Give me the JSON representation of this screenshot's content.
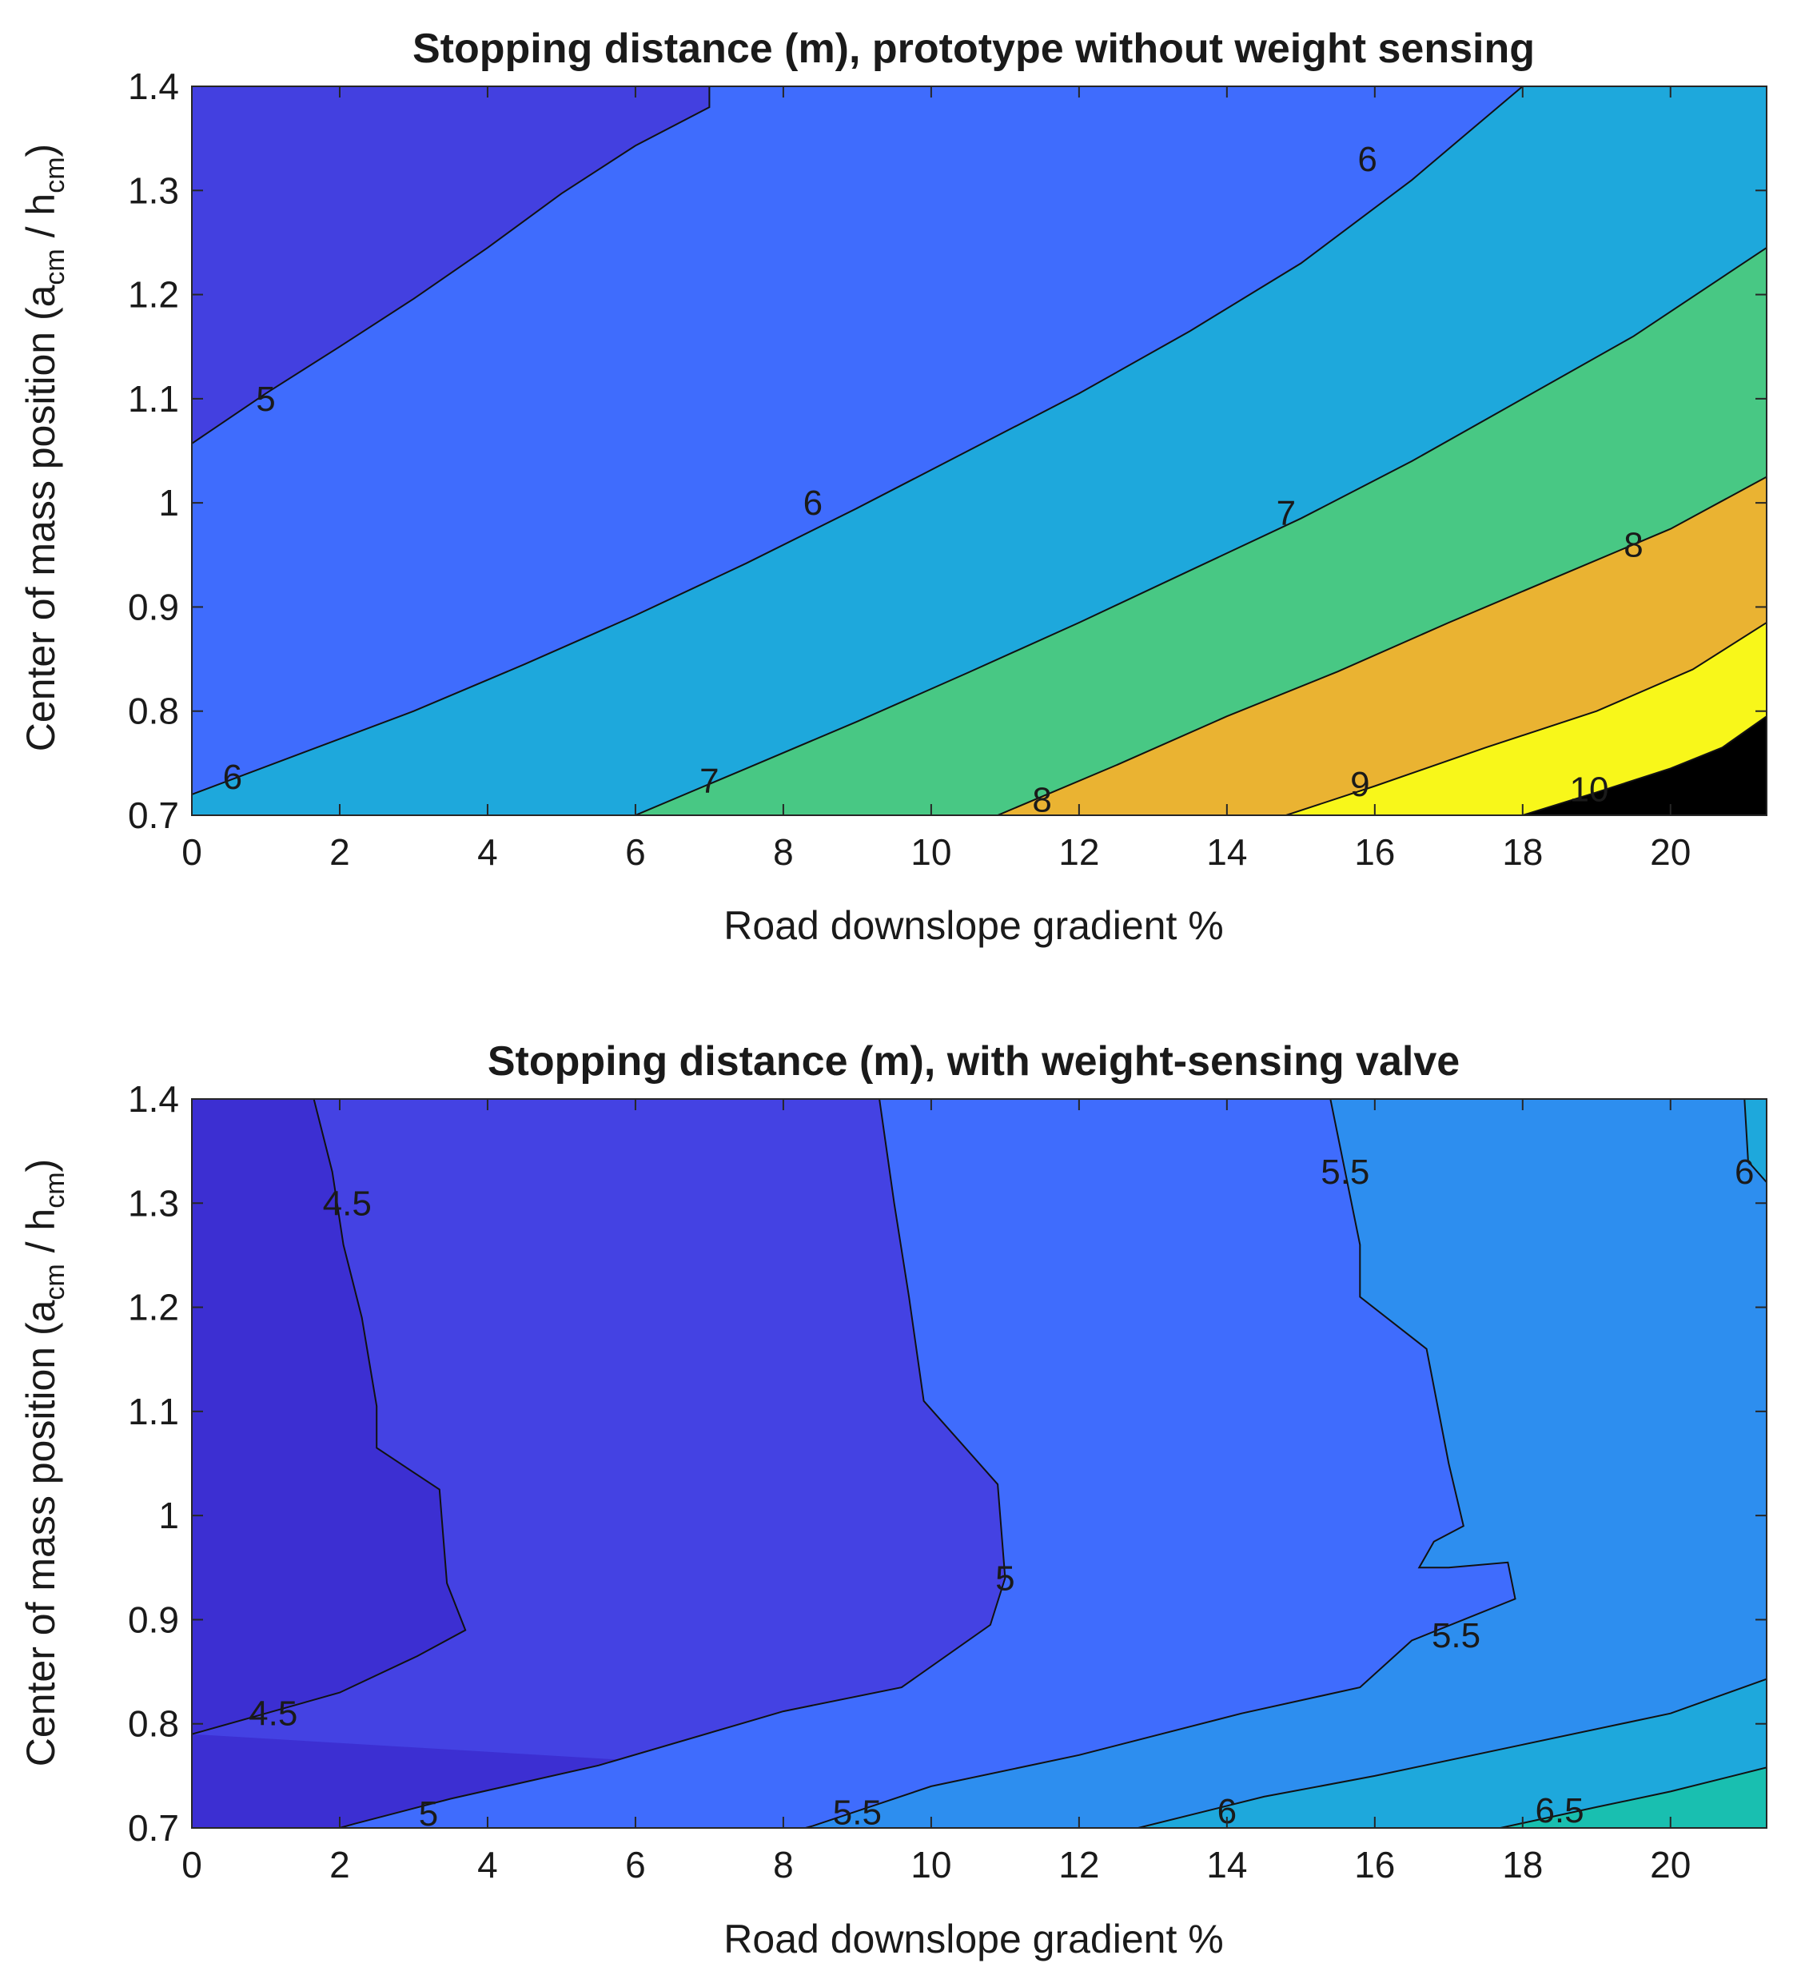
{
  "chart_data": [
    {
      "type": "contour",
      "title": "Stopping distance (m), prototype without weight sensing",
      "xlabel": "Road downslope gradient %",
      "ylabel": {
        "main": "Center of mass position (a",
        "sub1": "cm",
        "mid": " / h",
        "sub2": "cm",
        "end": ")"
      },
      "xlim": [
        0,
        21.3
      ],
      "ylim": [
        0.7,
        1.4
      ],
      "xticks": [
        "0",
        "2",
        "4",
        "6",
        "8",
        "10",
        "12",
        "14",
        "16",
        "18",
        "20"
      ],
      "yticks": [
        "0.7",
        "0.8",
        "0.9",
        "1",
        "1.1",
        "1.2",
        "1.3",
        "1.4"
      ],
      "levels": [
        5,
        6,
        7,
        8,
        9,
        10
      ],
      "level_colors": [
        "#4340e0",
        "#3f6cfd",
        "#1ea8dc",
        "#48c884",
        "#eab332",
        "#f8f71a"
      ],
      "contours": [
        {
          "level": 5,
          "label": "5",
          "points": [
            [
              0,
              1.057
            ],
            [
              1.0,
              1.105
            ],
            [
              2.0,
              1.15
            ],
            [
              3.0,
              1.196
            ],
            [
              4.0,
              1.245
            ],
            [
              5.0,
              1.297
            ],
            [
              6.0,
              1.343
            ],
            [
              7.0,
              1.38
            ],
            [
              7.0,
              1.4
            ]
          ]
        },
        {
          "level": 6,
          "label": "6",
          "points": [
            [
              0,
              0.72
            ],
            [
              1.5,
              0.76
            ],
            [
              3.0,
              0.8
            ],
            [
              4.5,
              0.845
            ],
            [
              6.0,
              0.892
            ],
            [
              7.5,
              0.942
            ],
            [
              9.0,
              0.995
            ],
            [
              10.5,
              1.05
            ],
            [
              12.0,
              1.105
            ],
            [
              13.5,
              1.165
            ],
            [
              15.0,
              1.23
            ],
            [
              16.5,
              1.31
            ],
            [
              17.2,
              1.352
            ],
            [
              18.0,
              1.4
            ]
          ]
        },
        {
          "level": 7,
          "label": "7",
          "points": [
            [
              6.0,
              0.7
            ],
            [
              7.5,
              0.745
            ],
            [
              9.0,
              0.79
            ],
            [
              10.5,
              0.837
            ],
            [
              12.0,
              0.885
            ],
            [
              13.5,
              0.935
            ],
            [
              15.0,
              0.985
            ],
            [
              16.5,
              1.04
            ],
            [
              18.0,
              1.1
            ],
            [
              19.5,
              1.16
            ],
            [
              21.3,
              1.245
            ]
          ]
        },
        {
          "level": 8,
          "label": "8",
          "points": [
            [
              10.9,
              0.7
            ],
            [
              12.5,
              0.748
            ],
            [
              14.0,
              0.795
            ],
            [
              15.5,
              0.838
            ],
            [
              17.0,
              0.885
            ],
            [
              18.5,
              0.93
            ],
            [
              20.0,
              0.975
            ],
            [
              21.3,
              1.025
            ]
          ]
        },
        {
          "level": 9,
          "label": "9",
          "points": [
            [
              14.8,
              0.7
            ],
            [
              16.0,
              0.728
            ],
            [
              17.5,
              0.765
            ],
            [
              19.0,
              0.8
            ],
            [
              20.3,
              0.84
            ],
            [
              21.3,
              0.885
            ]
          ]
        },
        {
          "level": 10,
          "label": "10",
          "points": [
            [
              18.0,
              0.7
            ],
            [
              19.0,
              0.722
            ],
            [
              20.0,
              0.745
            ],
            [
              20.7,
              0.765
            ],
            [
              21.3,
              0.795
            ]
          ]
        }
      ],
      "contour_labels": [
        {
          "label": "5",
          "x": 1.0,
          "y": 1.1
        },
        {
          "label": "6",
          "x": 15.9,
          "y": 1.33
        },
        {
          "label": "6",
          "x": 8.4,
          "y": 1.0
        },
        {
          "label": "6",
          "x": 0.55,
          "y": 0.737
        },
        {
          "label": "7",
          "x": 14.8,
          "y": 0.99
        },
        {
          "label": "7",
          "x": 7.0,
          "y": 0.733
        },
        {
          "label": "8",
          "x": 19.5,
          "y": 0.96
        },
        {
          "label": "8",
          "x": 11.5,
          "y": 0.715
        },
        {
          "label": "9",
          "x": 15.8,
          "y": 0.73
        },
        {
          "label": "10",
          "x": 18.9,
          "y": 0.725
        }
      ]
    },
    {
      "type": "contour",
      "title": "Stopping distance (m), with weight-sensing valve",
      "xlabel": "Road downslope gradient %",
      "ylabel": {
        "main": "Center of mass position (a",
        "sub1": "cm",
        "mid": " / h",
        "sub2": "cm",
        "end": ")"
      },
      "xlim": [
        0,
        21.3
      ],
      "ylim": [
        0.7,
        1.4
      ],
      "xticks": [
        "0",
        "2",
        "4",
        "6",
        "8",
        "10",
        "12",
        "14",
        "16",
        "18",
        "20"
      ],
      "yticks": [
        "0.7",
        "0.8",
        "0.9",
        "1",
        "1.1",
        "1.2",
        "1.3",
        "1.4"
      ],
      "levels": [
        4.5,
        5,
        5.5,
        6,
        6.5
      ],
      "level_colors": [
        "#3c2fd2",
        "#4442e3",
        "#3f6cfd",
        "#2d8eef",
        "#1ea8dc",
        "#19bfb0"
      ],
      "contours": [
        {
          "level": 4.5,
          "label": "4.5",
          "points": [
            [
              1.65,
              1.4
            ],
            [
              1.9,
              1.33
            ],
            [
              2.05,
              1.26
            ],
            [
              2.3,
              1.19
            ],
            [
              2.5,
              1.105
            ],
            [
              2.5,
              1.065
            ],
            [
              3.35,
              1.025
            ],
            [
              3.45,
              0.935
            ],
            [
              3.7,
              0.89
            ],
            [
              3.05,
              0.865
            ],
            [
              2.0,
              0.83
            ],
            [
              1.0,
              0.81
            ],
            [
              0,
              0.79
            ]
          ]
        },
        {
          "level": 5,
          "label": "5",
          "points": [
            [
              9.3,
              1.4
            ],
            [
              9.5,
              1.3
            ],
            [
              9.7,
              1.21
            ],
            [
              9.9,
              1.11
            ],
            [
              10.9,
              1.03
            ],
            [
              11.0,
              0.94
            ],
            [
              10.8,
              0.895
            ],
            [
              9.6,
              0.835
            ],
            [
              8.0,
              0.812
            ],
            [
              5.5,
              0.76
            ],
            [
              3.5,
              0.728
            ],
            [
              2.2,
              0.704
            ],
            [
              2.0,
              0.7
            ]
          ]
        },
        {
          "level": 5.5,
          "label": "5.5",
          "points": [
            [
              15.4,
              1.4
            ],
            [
              15.6,
              1.33
            ],
            [
              15.8,
              1.26
            ],
            [
              15.8,
              1.21
            ],
            [
              16.7,
              1.16
            ],
            [
              17.0,
              1.05
            ],
            [
              17.2,
              0.99
            ],
            [
              16.8,
              0.975
            ],
            [
              16.6,
              0.95
            ],
            [
              17.0,
              0.95
            ],
            [
              17.8,
              0.955
            ],
            [
              17.9,
              0.92
            ],
            [
              16.5,
              0.88
            ],
            [
              15.8,
              0.835
            ],
            [
              14.2,
              0.81
            ],
            [
              12.0,
              0.77
            ],
            [
              10.0,
              0.74
            ],
            [
              8.4,
              0.702
            ],
            [
              8.3,
              0.7
            ]
          ]
        },
        {
          "level": 6,
          "label": "6",
          "points": [
            [
              21.0,
              1.4
            ],
            [
              21.05,
              1.34
            ],
            [
              21.3,
              1.32
            ]
          ]
        },
        {
          "level": 6,
          "label": "6",
          "points": [
            [
              12.8,
              0.7
            ],
            [
              14.5,
              0.73
            ],
            [
              16.0,
              0.75
            ],
            [
              18.0,
              0.78
            ],
            [
              20.0,
              0.81
            ],
            [
              21.3,
              0.843
            ]
          ]
        },
        {
          "level": 6.5,
          "label": "6.5",
          "points": [
            [
              17.7,
              0.7
            ],
            [
              19.0,
              0.72
            ],
            [
              20.0,
              0.735
            ],
            [
              21.3,
              0.758
            ]
          ]
        }
      ],
      "contour_labels": [
        {
          "label": "4.5",
          "x": 2.1,
          "y": 1.3
        },
        {
          "label": "4.5",
          "x": 1.1,
          "y": 0.81
        },
        {
          "label": "5",
          "x": 11.0,
          "y": 0.94
        },
        {
          "label": "5",
          "x": 3.2,
          "y": 0.714
        },
        {
          "label": "5.5",
          "x": 15.6,
          "y": 1.33
        },
        {
          "label": "5.5",
          "x": 17.1,
          "y": 0.885
        },
        {
          "label": "5.5",
          "x": 9.0,
          "y": 0.715
        },
        {
          "label": "6",
          "x": 21.0,
          "y": 1.33
        },
        {
          "label": "6",
          "x": 14.0,
          "y": 0.716
        },
        {
          "label": "6.5",
          "x": 18.5,
          "y": 0.717
        }
      ]
    }
  ]
}
